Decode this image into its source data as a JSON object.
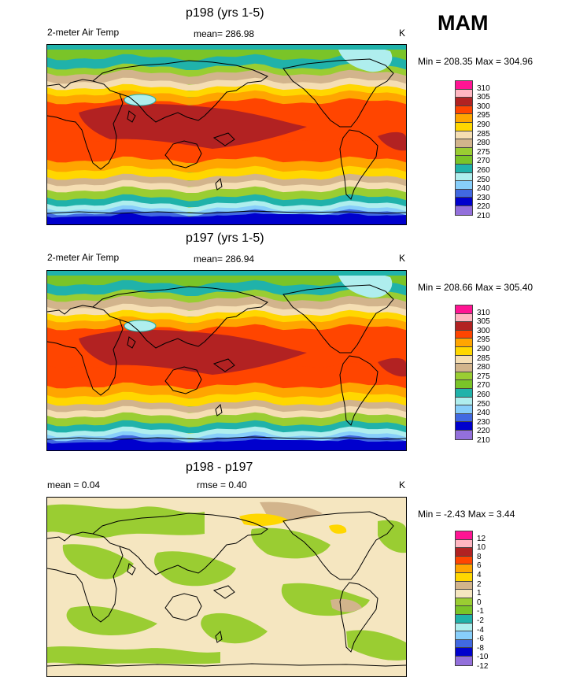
{
  "season": "MAM",
  "colors": {
    "abs": [
      "#ff1493",
      "#ffb6c1",
      "#b22222",
      "#ff4500",
      "#ffa500",
      "#ffd700",
      "#f5deb3",
      "#d2b48c",
      "#9acd32",
      "#7ac428",
      "#20b2aa",
      "#afeeee",
      "#87cefa",
      "#4169e1",
      "#0000cd",
      "#9370db"
    ],
    "diff": [
      "#ff1493",
      "#ffb6c1",
      "#b22222",
      "#ff4500",
      "#ffa500",
      "#ffd700",
      "#d2b48c",
      "#f5e6c0",
      "#9acd32",
      "#7ac428",
      "#20b2aa",
      "#afeeee",
      "#87cefa",
      "#4169e1",
      "#0000cd",
      "#9370db"
    ]
  },
  "chart_data": [
    {
      "type": "heatmap",
      "title": "p198 (yrs 1-5)",
      "variable": "2-meter Air Temp",
      "mean_label": "mean= 286.98",
      "units": "K",
      "minmax_label": "Min = 208.35 Max = 304.96",
      "min": 208.35,
      "max": 304.96,
      "mean": 286.98,
      "colorbar_levels": [
        "310",
        "305",
        "300",
        "295",
        "290",
        "285",
        "280",
        "275",
        "270",
        "260",
        "250",
        "240",
        "230",
        "220",
        "210"
      ]
    },
    {
      "type": "heatmap",
      "title": "p197 (yrs 1-5)",
      "variable": "2-meter Air Temp",
      "mean_label": "mean= 286.94",
      "units": "K",
      "minmax_label": "Min = 208.66 Max = 305.40",
      "min": 208.66,
      "max": 305.4,
      "mean": 286.94,
      "colorbar_levels": [
        "310",
        "305",
        "300",
        "295",
        "290",
        "285",
        "280",
        "275",
        "270",
        "260",
        "250",
        "240",
        "230",
        "220",
        "210"
      ]
    },
    {
      "type": "heatmap",
      "title": "p198 - p197",
      "mean_label": "mean =   0.04",
      "rmse_label": "rmse =   0.40",
      "units": "K",
      "minmax_label": "Min =  -2.43 Max =   3.44",
      "min": -2.43,
      "max": 3.44,
      "mean": 0.04,
      "rmse": 0.4,
      "colorbar_levels": [
        "12",
        "10",
        "8",
        "6",
        "4",
        "2",
        "1",
        "0",
        "-1",
        "-2",
        "-4",
        "-6",
        "-8",
        "-10",
        "-12"
      ]
    }
  ]
}
